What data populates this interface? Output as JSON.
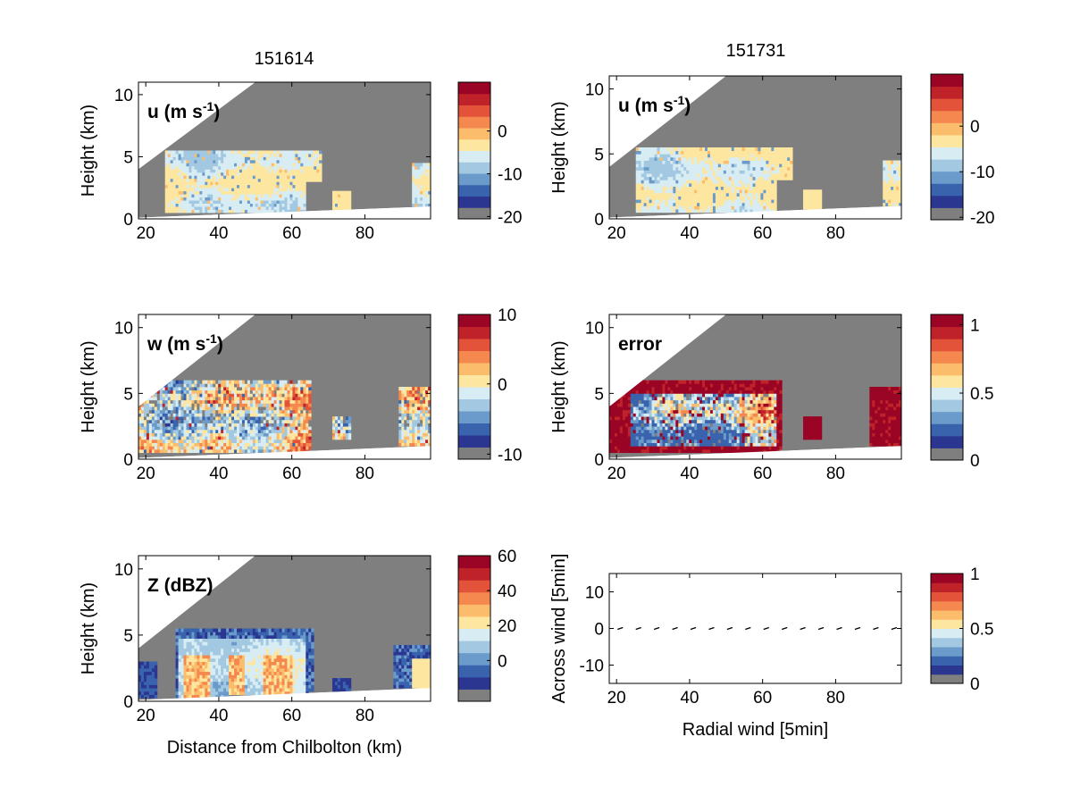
{
  "figure": {
    "column_titles": [
      "151614",
      "151731"
    ]
  },
  "colormap": [
    "#7f7f7f",
    "#2b3690",
    "#3a63ad",
    "#6a9bcb",
    "#a2c9e1",
    "#d8ecf4",
    "#fde6a0",
    "#fbbd6b",
    "#f5884f",
    "#e2533a",
    "#bf2229",
    "#9a0525"
  ],
  "chart_data": [
    {
      "id": "u-151614",
      "type": "heatmap",
      "title": "151614",
      "label": "u (m s",
      "label_sup": "-1",
      "label_close": ")",
      "ylabel": "Height (km)",
      "xlabel": "",
      "xlim": [
        18,
        98
      ],
      "ylim": [
        0,
        11
      ],
      "xticks": [
        20,
        40,
        60,
        80
      ],
      "yticks": [
        0,
        5,
        10
      ],
      "colorbar": {
        "ticks": [
          "0",
          "-10",
          "-20"
        ],
        "tick_levels": [
          0.643,
          0.33,
          0.017
        ]
      }
    },
    {
      "id": "u-151731",
      "type": "heatmap",
      "label": "u (m s",
      "label_sup": "-1",
      "label_close": ")",
      "ylabel": "Height (km)",
      "xlabel": "",
      "xlim": [
        18,
        98
      ],
      "ylim": [
        0,
        11
      ],
      "xticks": [
        20,
        40,
        60,
        80
      ],
      "yticks": [
        0,
        5,
        10
      ],
      "colorbar": {
        "ticks": [
          "0",
          "-10",
          "-20"
        ],
        "tick_levels": [
          0.643,
          0.33,
          0.017
        ]
      }
    },
    {
      "id": "w-151614",
      "type": "heatmap",
      "label": "w (m s",
      "label_sup": "-1",
      "label_close": ")",
      "ylabel": "Height (km)",
      "xlabel": "",
      "xlim": [
        18,
        98
      ],
      "ylim": [
        0,
        11
      ],
      "xticks": [
        20,
        40,
        60,
        80
      ],
      "yticks": [
        0,
        5,
        10
      ],
      "colorbar": {
        "ticks": [
          "10",
          "0",
          "-10"
        ],
        "tick_levels": [
          1.0,
          0.52,
          0.035
        ]
      }
    },
    {
      "id": "error-151731",
      "type": "heatmap",
      "label": "error",
      "ylabel": "Height (km)",
      "xlabel": "",
      "xlim": [
        18,
        98
      ],
      "ylim": [
        0,
        11
      ],
      "xticks": [
        20,
        40,
        60,
        80
      ],
      "yticks": [
        0,
        5,
        10
      ],
      "colorbar": {
        "ticks": [
          "1",
          "0.5",
          "0"
        ],
        "tick_levels": [
          0.93,
          0.46,
          0.0
        ]
      }
    },
    {
      "id": "z-151614",
      "type": "heatmap",
      "label": "Z (dBZ)",
      "ylabel": "Height (km)",
      "xlabel": "Distance from Chilbolton (km)",
      "xlim": [
        18,
        98
      ],
      "ylim": [
        0,
        11
      ],
      "xticks": [
        20,
        40,
        60,
        80
      ],
      "yticks": [
        0,
        5,
        10
      ],
      "colorbar": {
        "ticks": [
          "60",
          "40",
          "20",
          "0"
        ],
        "tick_levels": [
          1.0,
          0.76,
          0.52,
          0.28
        ]
      }
    },
    {
      "id": "wind-5min",
      "type": "scatter",
      "ylabel": "Across wind [5min]",
      "xlabel": "Radial wind [5min]",
      "xlim": [
        18,
        98
      ],
      "ylim": [
        -15,
        15
      ],
      "xticks": [
        20,
        40,
        60,
        80
      ],
      "yticks": [
        -10,
        0,
        10
      ],
      "x": [
        21,
        26,
        31,
        36,
        41,
        46,
        51,
        56,
        61,
        66,
        71,
        76,
        81,
        86,
        91,
        96
      ],
      "y": [
        0,
        0,
        0,
        0,
        0,
        0,
        0,
        0,
        0,
        0,
        0,
        0,
        0,
        0,
        0,
        0
      ],
      "colorbar": {
        "ticks": [
          "1",
          "0.5",
          "0"
        ],
        "tick_levels": [
          1.0,
          0.5,
          0.0
        ]
      }
    }
  ]
}
